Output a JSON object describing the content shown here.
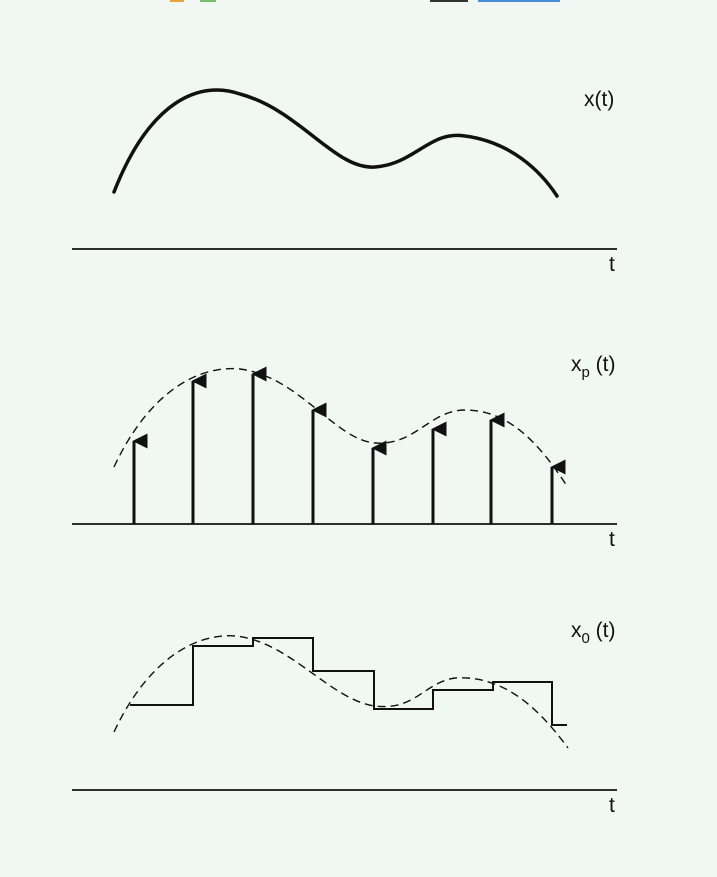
{
  "panels": {
    "top": {
      "label": "x(t)",
      "axis_label": "t"
    },
    "middle": {
      "label_base": "x",
      "label_sub": "p",
      "label_arg": " (t)",
      "axis_label": "t"
    },
    "bottom": {
      "label_base": "x",
      "label_sub": "0",
      "label_arg": " (t)",
      "axis_label": "t"
    }
  },
  "colors": {
    "background": "#f1f7f3",
    "ink": "#111111"
  }
}
